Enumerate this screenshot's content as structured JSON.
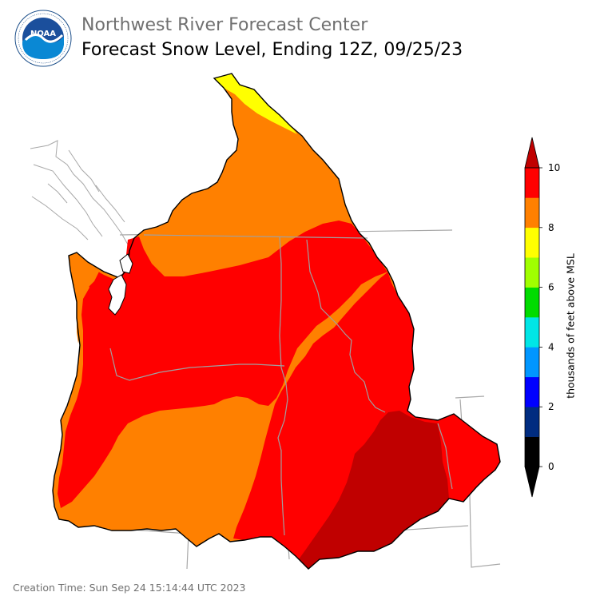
{
  "header": {
    "org": "Northwest River Forecast Center",
    "title": "Forecast Snow Level, Ending 12Z, 09/25/23",
    "logo_text": "NOAA"
  },
  "legend": {
    "title": "thousands of feet above MSL",
    "ticks": [
      "10",
      "8",
      "6",
      "4",
      "2",
      "0"
    ],
    "colors": [
      "#000000",
      "#002c80",
      "#0000ff",
      "#0096ff",
      "#00e6e6",
      "#00dc00",
      "#a0ff00",
      "#ffff00",
      "#ff8000",
      "#ff0000"
    ],
    "over_color": "#c00000"
  },
  "footer": {
    "creation_time": "Creation Time: Sun Sep 24 15:14:44 UTC 2023"
  }
}
